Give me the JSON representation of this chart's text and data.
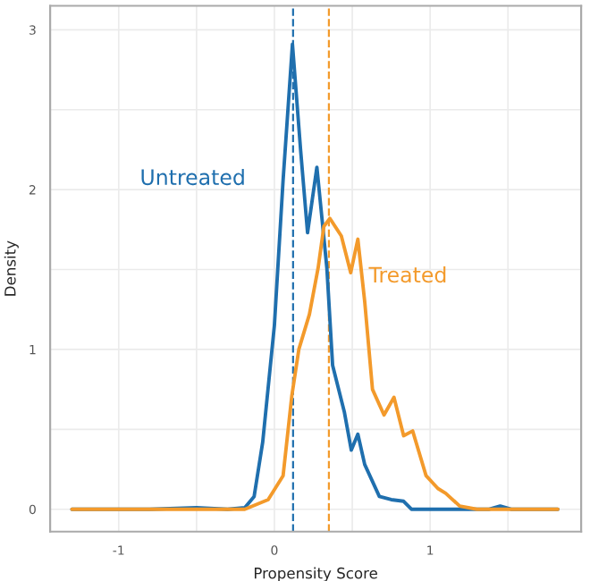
{
  "chart_data": {
    "type": "line",
    "xlabel": "Propensity Score",
    "ylabel": "Density",
    "xlim": [
      -1.44,
      1.97
    ],
    "ylim": [
      -0.14,
      3.15
    ],
    "xticks": [
      -1,
      0,
      1
    ],
    "yticks": [
      0,
      1,
      2,
      3
    ],
    "grid": true,
    "legend": false,
    "marker": "none",
    "line_style": "solid",
    "series": [
      {
        "name": "Untreated",
        "color": "#1f6fae",
        "x": [
          -1.3,
          -0.8,
          -0.5,
          -0.3,
          -0.19,
          -0.13,
          -0.075,
          0,
          0.056,
          0.116,
          0.169,
          0.213,
          0.273,
          0.337,
          0.374,
          0.449,
          0.494,
          0.536,
          0.58,
          0.674,
          0.75,
          0.83,
          0.88,
          1.0,
          1.38,
          1.45,
          1.52,
          1.82
        ],
        "values": [
          0,
          0,
          0.01,
          0,
          0.01,
          0.08,
          0.42,
          1.15,
          2.06,
          2.91,
          2.24,
          1.73,
          2.14,
          1.51,
          0.9,
          0.61,
          0.37,
          0.47,
          0.28,
          0.08,
          0.06,
          0.05,
          0,
          0,
          0,
          0.02,
          0,
          0
        ]
      },
      {
        "name": "Treated",
        "color": "#f39a2b",
        "x": [
          -1.3,
          -0.3,
          -0.19,
          -0.04,
          0.056,
          0.112,
          0.157,
          0.225,
          0.281,
          0.318,
          0.356,
          0.43,
          0.49,
          0.536,
          0.58,
          0.63,
          0.704,
          0.768,
          0.83,
          0.888,
          0.974,
          1.05,
          1.1,
          1.19,
          1.3,
          1.82
        ],
        "values": [
          0,
          0,
          0,
          0.06,
          0.21,
          0.71,
          1.0,
          1.22,
          1.51,
          1.77,
          1.82,
          1.71,
          1.48,
          1.69,
          1.3,
          0.75,
          0.59,
          0.7,
          0.46,
          0.49,
          0.21,
          0.13,
          0.1,
          0.02,
          0,
          0
        ]
      }
    ],
    "ref_lines": [
      {
        "axis": "x",
        "value": 0.12,
        "color": "#1f6fae",
        "line_style": "dashed"
      },
      {
        "axis": "x",
        "value": 0.35,
        "color": "#f39a2b",
        "line_style": "dashed"
      }
    ]
  }
}
